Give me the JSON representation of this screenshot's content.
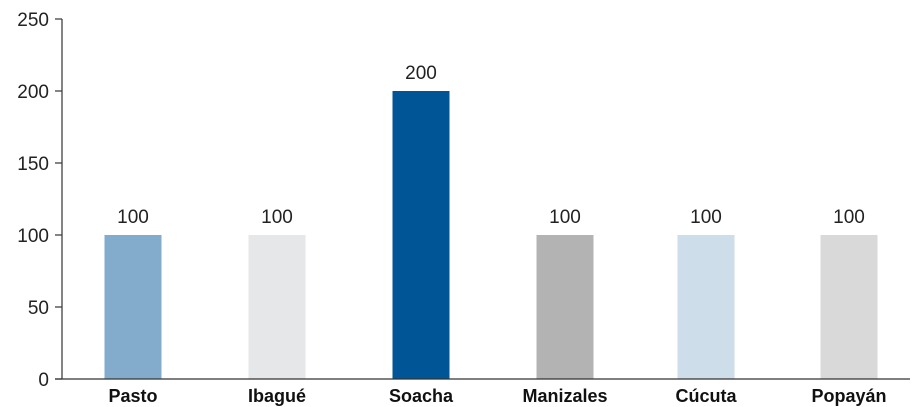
{
  "chart_data": {
    "type": "bar",
    "categories": [
      "Pasto",
      "Ibagué",
      "Soacha",
      "Manizales",
      "Cúcuta",
      "Popayán"
    ],
    "values": [
      100,
      100,
      200,
      100,
      100,
      100
    ],
    "value_labels": [
      "100",
      "100",
      "200",
      "100",
      "100",
      "100"
    ],
    "colors": [
      "#82abcc",
      "#e6e7e8",
      "#005596",
      "#b3b3b4",
      "#cdddea",
      "#d9d9d9"
    ],
    "ylim": [
      0,
      250
    ],
    "y_ticks": [
      0,
      50,
      100,
      150,
      200,
      250
    ],
    "title": "",
    "xlabel": "",
    "ylabel": "",
    "grid": false,
    "legend": false
  }
}
